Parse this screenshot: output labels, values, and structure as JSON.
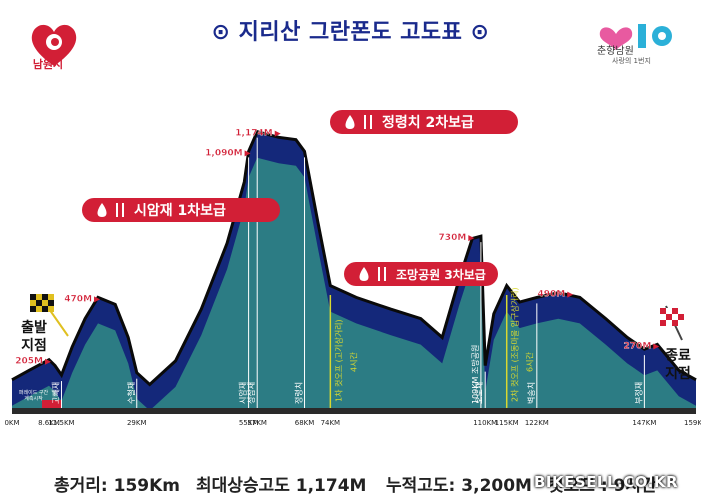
{
  "header": {
    "title": "⊙ 지리산 그란폰도 고도표 ⊙",
    "left_logo_text": "남원시",
    "right_logo_text": "춘향남원",
    "right_logo_sub": "사랑의 1번지"
  },
  "colors": {
    "profile_dark": "#14287a",
    "profile_teal": "#2c7c84",
    "marker_red": "#d21f36",
    "stop_line": "#d8d830",
    "ground": "#2a2a2a"
  },
  "chart_data": {
    "type": "area",
    "title": "지리산 그란폰도 고도표",
    "xunit": "KM",
    "yunit": "M",
    "profile": [
      {
        "x": 0,
        "y": 120
      },
      {
        "x": 4,
        "y": 160
      },
      {
        "x": 8.6,
        "y": 205
      },
      {
        "x": 10,
        "y": 180
      },
      {
        "x": 11.5,
        "y": 140
      },
      {
        "x": 14,
        "y": 260
      },
      {
        "x": 17,
        "y": 380
      },
      {
        "x": 20,
        "y": 470
      },
      {
        "x": 24,
        "y": 440
      },
      {
        "x": 27,
        "y": 300
      },
      {
        "x": 29,
        "y": 150
      },
      {
        "x": 32,
        "y": 100
      },
      {
        "x": 38,
        "y": 200
      },
      {
        "x": 44,
        "y": 420
      },
      {
        "x": 50,
        "y": 700
      },
      {
        "x": 54,
        "y": 960
      },
      {
        "x": 55,
        "y": 1090
      },
      {
        "x": 57,
        "y": 1174
      },
      {
        "x": 62,
        "y": 1150
      },
      {
        "x": 66,
        "y": 1140
      },
      {
        "x": 68,
        "y": 1090
      },
      {
        "x": 71,
        "y": 800
      },
      {
        "x": 74,
        "y": 520
      },
      {
        "x": 80,
        "y": 470
      },
      {
        "x": 88,
        "y": 420
      },
      {
        "x": 95,
        "y": 380
      },
      {
        "x": 100,
        "y": 300
      },
      {
        "x": 104,
        "y": 550
      },
      {
        "x": 107,
        "y": 720
      },
      {
        "x": 109,
        "y": 730
      },
      {
        "x": 110,
        "y": 180
      },
      {
        "x": 112,
        "y": 400
      },
      {
        "x": 115,
        "y": 520
      },
      {
        "x": 118,
        "y": 450
      },
      {
        "x": 122,
        "y": 470
      },
      {
        "x": 127,
        "y": 490
      },
      {
        "x": 132,
        "y": 470
      },
      {
        "x": 138,
        "y": 380
      },
      {
        "x": 143,
        "y": 300
      },
      {
        "x": 147,
        "y": 250
      },
      {
        "x": 150,
        "y": 270
      },
      {
        "x": 155,
        "y": 160
      },
      {
        "x": 159,
        "y": 120
      }
    ],
    "elevation_labels": [
      {
        "x": 8.6,
        "y": 205,
        "label": "205M"
      },
      {
        "x": 20,
        "y": 470,
        "label": "470M"
      },
      {
        "x": 55,
        "y": 1090,
        "label": "1,090M"
      },
      {
        "x": 62,
        "y": 1174,
        "label": "1,174M"
      },
      {
        "x": 107,
        "y": 730,
        "label": "730M"
      },
      {
        "x": 130,
        "y": 490,
        "label": "490M"
      },
      {
        "x": 150,
        "y": 270,
        "label": "270M"
      }
    ],
    "km_ticks": [
      {
        "x": 0,
        "label": "0KM"
      },
      {
        "x": 8.6,
        "label": "8.6KM"
      },
      {
        "x": 11.5,
        "label": "11.5KM"
      },
      {
        "x": 29,
        "label": "29KM"
      },
      {
        "x": 55,
        "label": "55KM"
      },
      {
        "x": 57,
        "label": "57KM"
      },
      {
        "x": 68,
        "label": "68KM"
      },
      {
        "x": 74,
        "label": "74KM"
      },
      {
        "x": 110,
        "label": "110KM"
      },
      {
        "x": 115,
        "label": "115KM"
      },
      {
        "x": 122,
        "label": "122KM"
      },
      {
        "x": 147,
        "label": "147KM"
      },
      {
        "x": 159,
        "label": "159KM"
      }
    ],
    "place_labels": [
      {
        "x": 11.5,
        "label": "고빼재"
      },
      {
        "x": 29,
        "label": "수철재"
      },
      {
        "x": 55,
        "label": "시암재"
      },
      {
        "x": 57,
        "label": "성삼재"
      },
      {
        "x": 68,
        "label": "정령치"
      },
      {
        "x": 110,
        "label": "오도재"
      },
      {
        "x": 109,
        "label": "109KM 조망공원"
      },
      {
        "x": 122,
        "label": "벽송치"
      },
      {
        "x": 147,
        "label": "부정재"
      }
    ],
    "cutoffs": [
      {
        "x": 74,
        "label": "1차 컷오프 (고기삼거리)",
        "time": "4시간"
      },
      {
        "x": 115,
        "label": "2차 컷오프 (조동마을 입구삼거리)",
        "time": "6시간"
      }
    ],
    "aid_stations": [
      {
        "label": "시암재 1차보급"
      },
      {
        "label": "정령치 2차보급"
      },
      {
        "label": "조망공원 3차보급"
      }
    ],
    "start_label": "출발\n지점",
    "finish_label": "종료\n지점",
    "section_note": "퍼레이드 구간\n계측시작",
    "ymax": 1300
  },
  "footer": {
    "total_distance": "총거리: 159Km",
    "max_altitude": "최대상승고도 1,174M",
    "cumulative": "누적고도: 3,200M",
    "cutoff": "컷오프 : 9시간",
    "watermark": "BIKESELL.CO.KR"
  }
}
